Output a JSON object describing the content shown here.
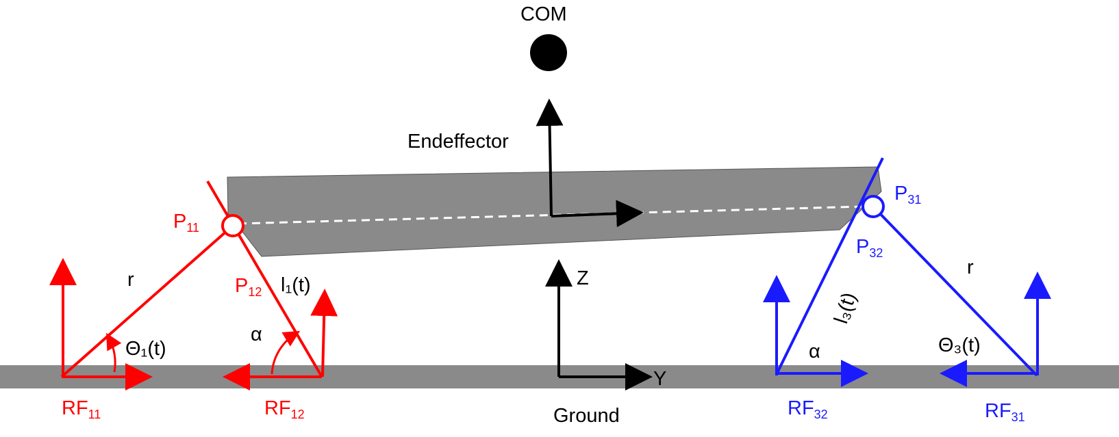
{
  "labels": {
    "com": "COM",
    "endeffector": "Endeffector",
    "ground": "Ground",
    "axis_z": "Z",
    "axis_y": "Y",
    "p11": {
      "base": "P",
      "sub": "11"
    },
    "p12": {
      "base": "P",
      "sub": "12"
    },
    "p31": {
      "base": "P",
      "sub": "31"
    },
    "p32": {
      "base": "P",
      "sub": "32"
    },
    "rf11": {
      "base": "RF",
      "sub": "11"
    },
    "rf12": {
      "base": "RF",
      "sub": "12"
    },
    "rf31": {
      "base": "RF",
      "sub": "31"
    },
    "rf32": {
      "base": "RF",
      "sub": "32"
    },
    "r_left": "r",
    "r_right": "r",
    "l1": "l₁(t)",
    "l3": "l₃(t)",
    "alpha_left": "α",
    "alpha_right": "α",
    "theta1": "Θ₁(t)",
    "theta3": "Θ₃(t)"
  },
  "colors": {
    "leg_1": "#ff0000",
    "leg_3": "#1a1aff",
    "body": "#8a8a8a",
    "ground": "#8a8a8a",
    "frame": "#000000"
  }
}
